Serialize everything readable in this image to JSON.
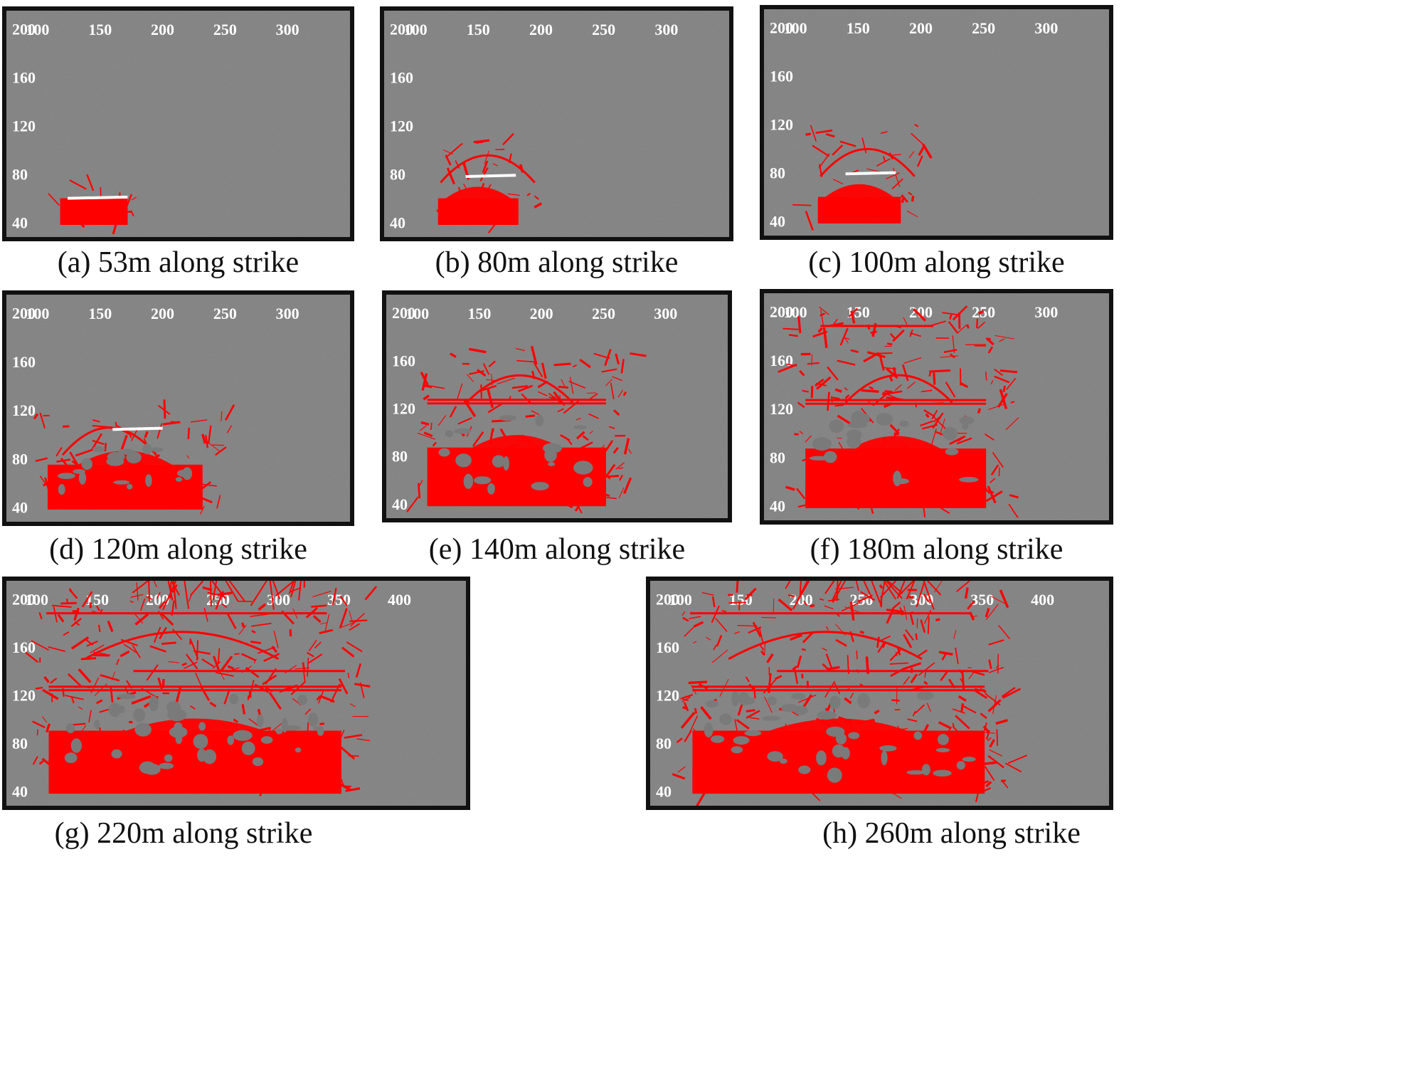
{
  "figure": {
    "panels": [
      {
        "id": "a",
        "caption": "(a) 53m along strike",
        "x_ticks": [
          "100",
          "150",
          "200",
          "250",
          "300"
        ],
        "y_ticks": [
          "200",
          "160",
          "120",
          "80",
          "40"
        ],
        "stage": 0
      },
      {
        "id": "b",
        "caption": "(b) 80m along strike",
        "x_ticks": [
          "100",
          "150",
          "200",
          "250",
          "300"
        ],
        "y_ticks": [
          "200",
          "160",
          "120",
          "80",
          "40"
        ],
        "stage": 1
      },
      {
        "id": "c",
        "caption": "(c) 100m along strike",
        "x_ticks": [
          "100",
          "150",
          "200",
          "250",
          "300"
        ],
        "y_ticks": [
          "200",
          "160",
          "120",
          "80",
          "40"
        ],
        "stage": 2
      },
      {
        "id": "d",
        "caption": "(d) 120m along strike",
        "x_ticks": [
          "100",
          "150",
          "200",
          "250",
          "300"
        ],
        "y_ticks": [
          "200",
          "160",
          "120",
          "80",
          "40"
        ],
        "stage": 3
      },
      {
        "id": "e",
        "caption": "(e) 140m along strike",
        "x_ticks": [
          "100",
          "150",
          "200",
          "250",
          "300"
        ],
        "y_ticks": [
          "200",
          "160",
          "120",
          "80",
          "40"
        ],
        "stage": 4
      },
      {
        "id": "f",
        "caption": "(f) 180m along strike",
        "x_ticks": [
          "100",
          "150",
          "200",
          "250",
          "300"
        ],
        "y_ticks": [
          "200",
          "160",
          "120",
          "80",
          "40"
        ],
        "stage": 5
      },
      {
        "id": "g",
        "caption": "(g) 220m along strike",
        "x_ticks": [
          "100",
          "150",
          "200",
          "250",
          "300",
          "350",
          "400"
        ],
        "y_ticks": [
          "200",
          "160",
          "120",
          "80",
          "40"
        ],
        "stage": 6
      },
      {
        "id": "h",
        "caption": "(h) 260m along strike",
        "x_ticks": [
          "100",
          "150",
          "200",
          "250",
          "300",
          "350",
          "400"
        ],
        "y_ticks": [
          "200",
          "160",
          "120",
          "80",
          "40"
        ],
        "stage": 7
      }
    ],
    "colors": {
      "background_noise": "#7a7a7a",
      "fracture": "#ff0000",
      "seam_highlight": "#ffffff",
      "frame": "#111111",
      "tick_text": "#ffffff"
    }
  }
}
